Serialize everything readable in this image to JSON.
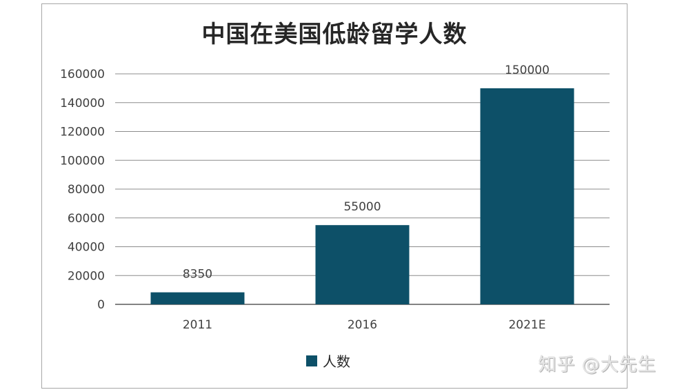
{
  "chart_data": {
    "type": "bar",
    "title": "中国在美国低龄留学人数",
    "categories": [
      "2011",
      "2016",
      "2021E"
    ],
    "series": [
      {
        "name": "人数",
        "values": [
          8350,
          55000,
          150000
        ]
      }
    ],
    "data_labels": [
      "8350",
      "55000",
      "150000"
    ],
    "ylim": [
      0,
      160000
    ],
    "yticks": [
      0,
      20000,
      40000,
      60000,
      80000,
      100000,
      120000,
      140000,
      160000
    ],
    "grid": true,
    "legend_position": "bottom",
    "bar_color": "#0d5068"
  },
  "watermark": "知乎 @大先生"
}
